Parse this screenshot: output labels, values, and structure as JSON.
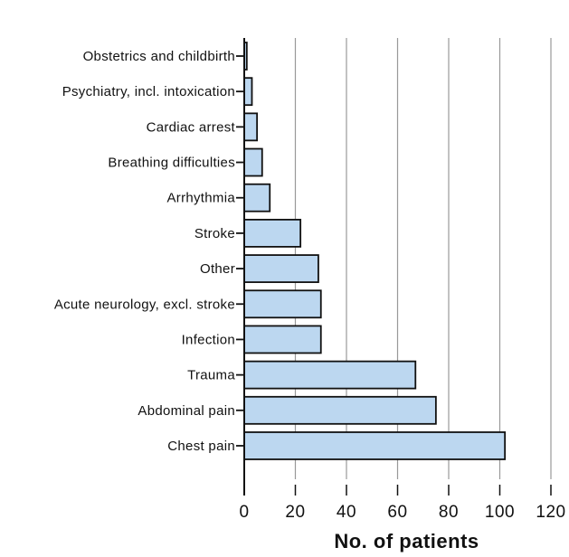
{
  "chart_data": {
    "type": "bar",
    "orientation": "horizontal",
    "categories": [
      "Obstetrics and childbirth",
      "Psychiatry, incl. intoxication",
      "Cardiac arrest",
      "Breathing difficulties",
      "Arrhythmia",
      "Stroke",
      "Other",
      "Acute neurology, excl. stroke",
      "Infection",
      "Trauma",
      "Abdominal pain",
      "Chest pain"
    ],
    "values": [
      1,
      3,
      5,
      7,
      10,
      22,
      29,
      30,
      30,
      67,
      75,
      102
    ],
    "xlabel": "No. of patients",
    "ylabel": "",
    "xlim": [
      0,
      120
    ],
    "xticks": [
      0,
      20,
      40,
      60,
      80,
      100,
      120
    ],
    "grid": "vertical",
    "bar_color": "#bcd7f0",
    "bar_edge_color": "#111111",
    "legend": "none"
  }
}
